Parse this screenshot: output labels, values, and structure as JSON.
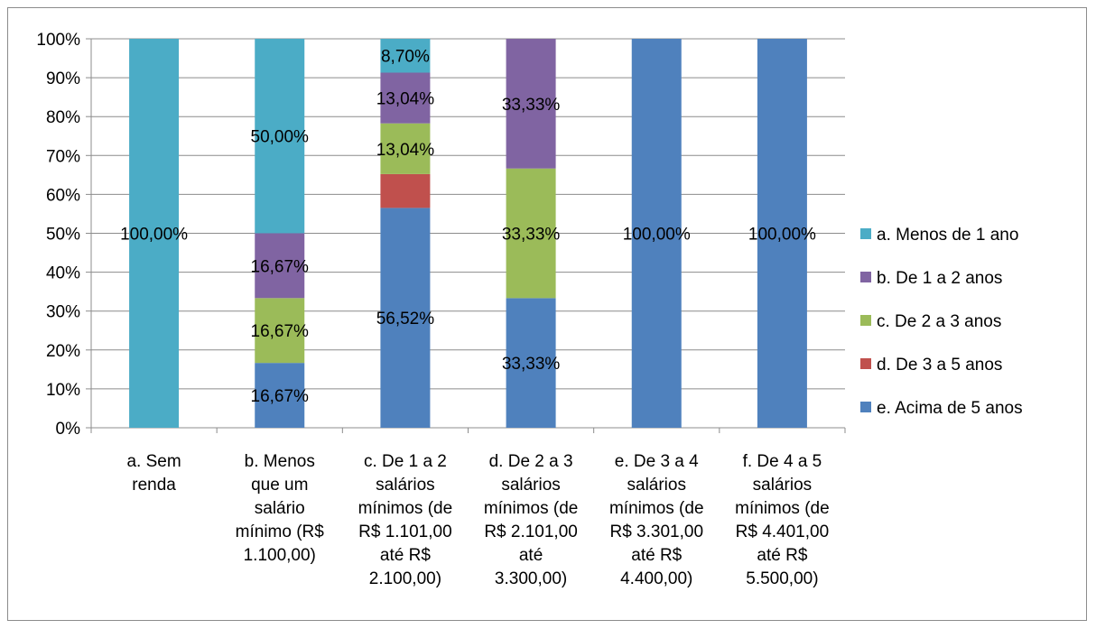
{
  "chart_data": {
    "type": "bar",
    "stacked": true,
    "percent_stacked": true,
    "title": "",
    "xlabel": "",
    "ylabel": "",
    "ylim": [
      0,
      100
    ],
    "y_ticks": [
      "0%",
      "10%",
      "20%",
      "30%",
      "40%",
      "50%",
      "60%",
      "70%",
      "80%",
      "90%",
      "100%"
    ],
    "grid": true,
    "legend_position": "right",
    "categories": [
      [
        "a. Sem",
        "renda"
      ],
      [
        "b. Menos",
        "que um",
        "salário",
        "mínimo (R$",
        "1.100,00)"
      ],
      [
        "c. De 1 a 2",
        "salários",
        "mínimos (de",
        "R$ 1.101,00",
        "até R$",
        "2.100,00)"
      ],
      [
        "d. De 2 a 3",
        "salários",
        "mínimos (de",
        "R$ 2.101,00",
        "até",
        "3.300,00)"
      ],
      [
        "e. De 3 a 4",
        "salários",
        "mínimos (de",
        "R$ 3.301,00",
        "até R$",
        "4.400,00)"
      ],
      [
        "f. De 4 a 5",
        "salários",
        "mínimos (de",
        "R$ 4.401,00",
        "até R$",
        "5.500,00)"
      ]
    ],
    "series": [
      {
        "name": "e. Acima de 5 anos",
        "color": "#4f81bd",
        "values": [
          0,
          16.67,
          56.52,
          33.33,
          100,
          100
        ],
        "labels": [
          "",
          "16,67%",
          "56,52%",
          "33,33%",
          "100,00%",
          "100,00%"
        ]
      },
      {
        "name": "d. De 3 a 5 anos",
        "color": "#c0504d",
        "values": [
          0,
          0,
          8.7,
          0,
          0,
          0
        ],
        "labels": [
          "",
          "",
          "",
          "",
          "",
          ""
        ]
      },
      {
        "name": "c. De 2 a 3 anos",
        "color": "#9bbb59",
        "values": [
          0,
          16.67,
          13.04,
          33.33,
          0,
          0
        ],
        "labels": [
          "",
          "16,67%",
          "13,04%",
          "33,33%",
          "",
          ""
        ]
      },
      {
        "name": "b. De 1 a 2 anos",
        "color": "#8064a2",
        "values": [
          0,
          16.67,
          13.04,
          33.33,
          0,
          0
        ],
        "labels": [
          "",
          "16,67%",
          "13,04%",
          "33,33%",
          "",
          ""
        ]
      },
      {
        "name": "a. Menos de 1 ano",
        "color": "#4bacc6",
        "values": [
          100,
          50.0,
          8.7,
          0,
          0,
          0
        ],
        "labels": [
          "100,00%",
          "50,00%",
          "8,70%",
          "",
          "",
          ""
        ]
      }
    ],
    "legend_order": [
      "a. Menos de 1 ano",
      "b. De 1 a 2 anos",
      "c. De 2 a 3 anos",
      "d. De 3 a 5 anos",
      "e. Acima de 5 anos"
    ]
  }
}
